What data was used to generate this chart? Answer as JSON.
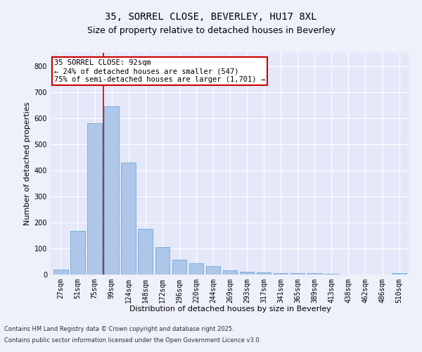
{
  "title1": "35, SORREL CLOSE, BEVERLEY, HU17 8XL",
  "title2": "Size of property relative to detached houses in Beverley",
  "xlabel": "Distribution of detached houses by size in Beverley",
  "ylabel": "Number of detached properties",
  "categories": [
    "27sqm",
    "51sqm",
    "75sqm",
    "99sqm",
    "124sqm",
    "148sqm",
    "172sqm",
    "196sqm",
    "220sqm",
    "244sqm",
    "269sqm",
    "293sqm",
    "317sqm",
    "341sqm",
    "365sqm",
    "389sqm",
    "413sqm",
    "438sqm",
    "462sqm",
    "486sqm",
    "510sqm"
  ],
  "values": [
    18,
    168,
    580,
    645,
    430,
    175,
    105,
    57,
    42,
    32,
    15,
    10,
    9,
    5,
    5,
    5,
    2,
    0,
    0,
    0,
    5
  ],
  "bar_color": "#aec6e8",
  "bar_edge_color": "#5a9fd4",
  "bar_width": 0.85,
  "vline_x": 2.5,
  "vline_color": "#cc0000",
  "annotation_text": "35 SORREL CLOSE: 92sqm\n← 24% of detached houses are smaller (547)\n75% of semi-detached houses are larger (1,701) →",
  "annotation_box_color": "#ffffff",
  "annotation_box_edge_color": "#cc0000",
  "ylim": [
    0,
    850
  ],
  "yticks": [
    0,
    100,
    200,
    300,
    400,
    500,
    600,
    700,
    800
  ],
  "footer1": "Contains HM Land Registry data © Crown copyright and database right 2025.",
  "footer2": "Contains public sector information licensed under the Open Government Licence v3.0.",
  "bg_color": "#eef0fa",
  "plot_bg_color": "#e4e8f8",
  "grid_color": "#ffffff",
  "title_fontsize": 10,
  "subtitle_fontsize": 9,
  "axis_label_fontsize": 8,
  "tick_fontsize": 7,
  "annotation_fontsize": 7.5,
  "footer_fontsize": 6
}
